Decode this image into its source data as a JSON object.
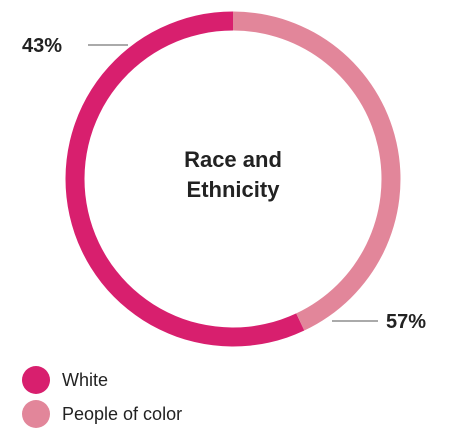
{
  "chart_data": {
    "type": "pie",
    "title": "Race and Ethnicity",
    "title_lines": [
      "Race and",
      "Ethnicity"
    ],
    "slices": [
      {
        "name": "White",
        "value": 57,
        "label": "57%",
        "color": "#d81f6e"
      },
      {
        "name": "People of color",
        "value": 43,
        "label": "43%",
        "color": "#e2869a"
      }
    ],
    "legend_position": "bottom-left"
  },
  "legend": [
    {
      "label": "White",
      "color": "#d81f6e"
    },
    {
      "label": "People of color",
      "color": "#e2869a"
    }
  ]
}
